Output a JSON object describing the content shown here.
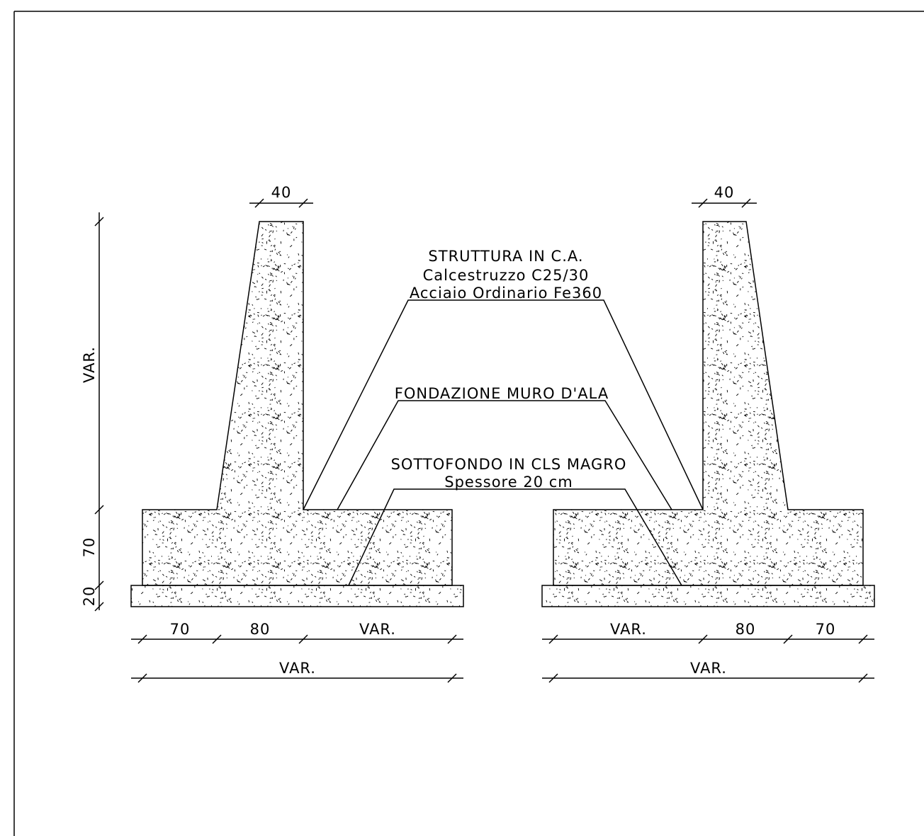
{
  "left_wall": {
    "top_width": "40",
    "height": "VAR.",
    "footing_height": "70",
    "lean_height": "20",
    "toe": "70",
    "stem_base": "80",
    "heel": "VAR.",
    "total_width": "VAR."
  },
  "right_wall": {
    "top_width": "40",
    "heel": "VAR.",
    "stem_base": "80",
    "toe": "70",
    "total_width": "VAR."
  },
  "notes": {
    "structure": [
      "STRUTTURA IN C.A.",
      "Calcestruzzo C25/30",
      "Acciaio Ordinario Fe360"
    ],
    "foundation": [
      "FONDAZIONE MURO D'ALA"
    ],
    "base": [
      "SOTTOFONDO IN CLS MAGRO",
      "Spessore 20 cm"
    ]
  }
}
